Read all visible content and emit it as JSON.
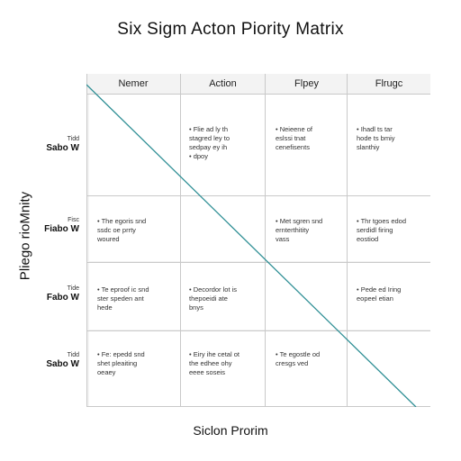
{
  "title": "Six Sigm Acton Piority Matrix",
  "y_axis_label": "Pliego rioMnity",
  "x_axis_label": "Siclon Prorim",
  "columns": [
    "Nemer",
    "Action",
    "Flpey",
    "Flrugc"
  ],
  "rows": [
    {
      "small": "Tidd",
      "label": "Sabo W"
    },
    {
      "small": "Fisc",
      "label": "Fiabo W"
    },
    {
      "small": "Tide",
      "label": "Fabo W"
    },
    {
      "small": "Tidd",
      "label": "Sabo W"
    }
  ],
  "cells": [
    [
      "",
      "•  Flie ad ly th\n   stagred ley to\n   sedpay ey ih\n•  dpoy",
      "•  Neieene of\n   eslssi tnat\n   cenefisents",
      "•  Ihadl ts tar\n   hode ts bmiy\n   slanthiy"
    ],
    [
      "•  The egoris snd\n   ssdc oe prrty\n   woured",
      "",
      "•  Met sgren snd\n   ernterthitity\n   vass",
      "•  Thr tgoes edod\n   serdidl firing\n   eostiod"
    ],
    [
      "•  Te eproof ic snd\n   ster speden ant\n   hede",
      "•  Decordor lot is\n   thepoeidi ate\n   bnys",
      "",
      "•  Pede ed Iring\n   eopeel etian"
    ],
    [
      "•  Fe: epedd snd\n   shet pleaiting\n   oeaey",
      "•  Eiry ihe cetal ot\n   the edhee ohy\n   eeee soseis",
      "•  Te egostle od\n   cresgs ved",
      ""
    ]
  ]
}
